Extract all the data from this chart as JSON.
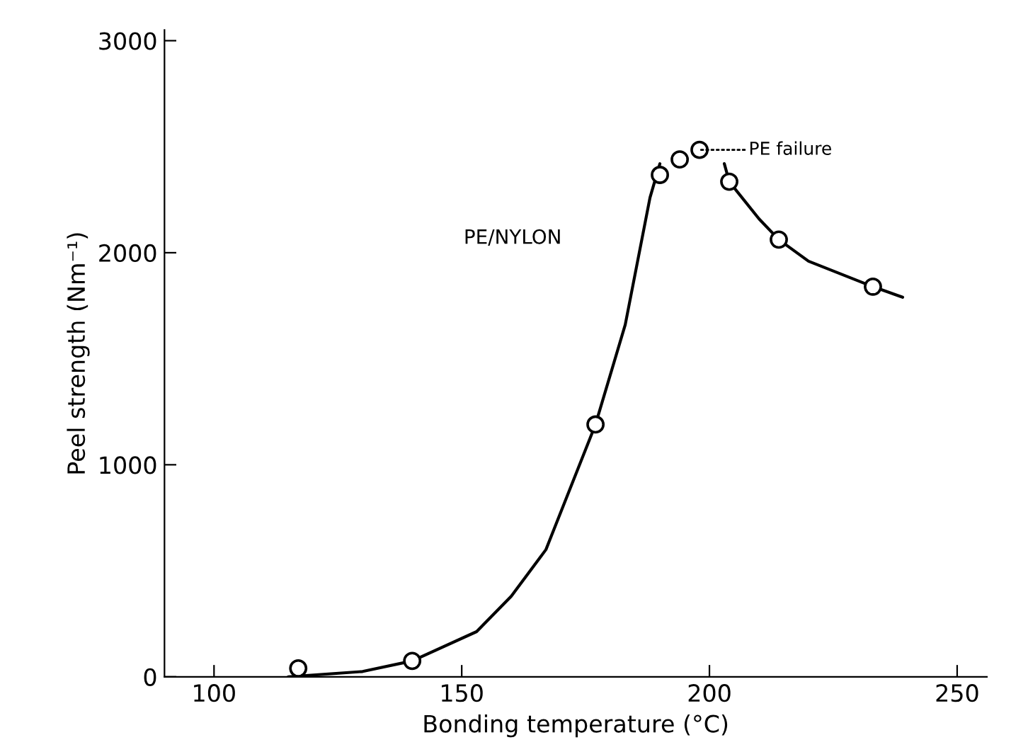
{
  "chart_data": {
    "type": "line",
    "xlabel": "Bonding temperature (°C)",
    "ylabel": "Peel strength (Nm⁻¹)",
    "xlim": [
      90,
      256
    ],
    "ylim": [
      0,
      3050
    ],
    "xticks": [
      100,
      150,
      200,
      250
    ],
    "yticks": [
      0,
      1000,
      2000,
      3000
    ],
    "grid": false,
    "legend": false,
    "series": [
      {
        "name": "PE/NYLON",
        "type": "scatter",
        "marker": "circle",
        "color": "#000000",
        "x": [
          117,
          140,
          177,
          190,
          194,
          198,
          204,
          214,
          233
        ],
        "values": [
          40,
          75,
          1190,
          2367,
          2440,
          2485,
          2335,
          2062,
          1840
        ]
      },
      {
        "color": "#000000",
        "line_style": "solid",
        "marker": "none",
        "x": [
          115,
          130,
          140,
          153,
          160,
          167,
          177,
          183,
          188,
          190
        ],
        "values": [
          0,
          25,
          75,
          213,
          380,
          600,
          1190,
          1660,
          2260,
          2420
        ]
      },
      {
        "color": "#000000",
        "line_style": "solid",
        "marker": "none",
        "x": [
          203,
          204,
          210,
          214,
          220,
          233,
          239
        ],
        "values": [
          2420,
          2335,
          2160,
          2062,
          1960,
          1840,
          1790
        ]
      }
    ],
    "annotations": [
      {
        "text": "PE failure",
        "x": 198,
        "y": 2485
      }
    ]
  }
}
